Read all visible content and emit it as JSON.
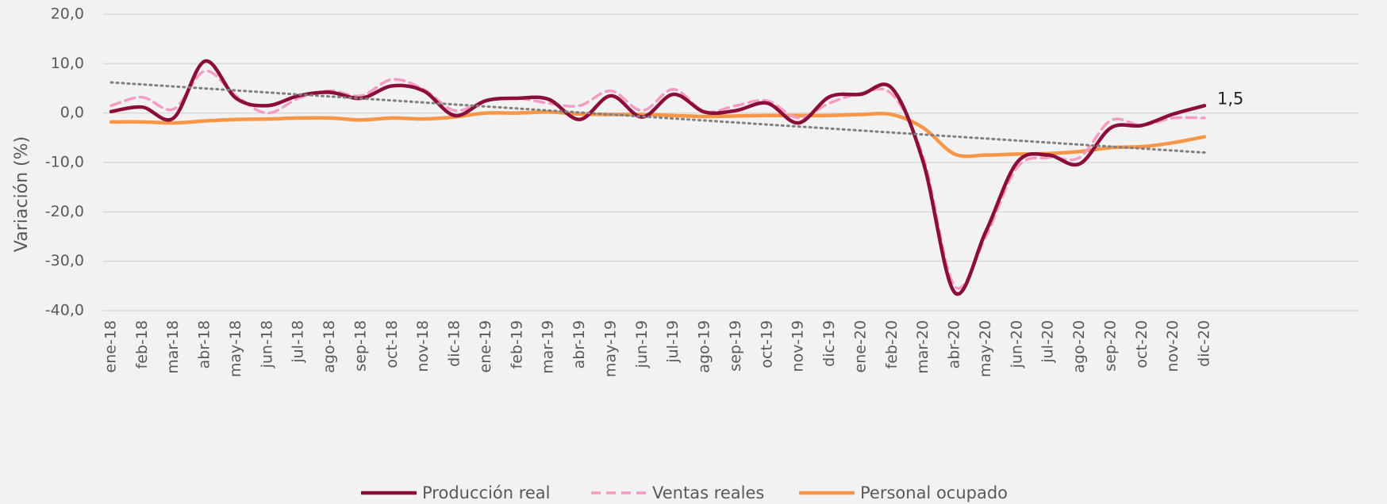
{
  "chart_data": {
    "type": "line",
    "y_label": "Variación (%)",
    "categories": [
      "ene-18",
      "feb-18",
      "mar-18",
      "abr-18",
      "may-18",
      "jun-18",
      "jul-18",
      "ago-18",
      "sep-18",
      "oct-18",
      "nov-18",
      "dic-18",
      "ene-19",
      "feb-19",
      "mar-19",
      "abr-19",
      "may-19",
      "jun-19",
      "jul-19",
      "ago-19",
      "sep-19",
      "oct-19",
      "nov-19",
      "dic-19",
      "ene-20",
      "feb-20",
      "mar-20",
      "abr-20",
      "may-20",
      "jun-20",
      "jul-20",
      "ago-20",
      "sep-20",
      "oct-20",
      "nov-20",
      "dic-20"
    ],
    "series": [
      {
        "name": "Producción real",
        "color": "#8b0e3a",
        "dash": "solid",
        "values": [
          0.3,
          1.2,
          -1.0,
          10.5,
          3.0,
          1.5,
          3.5,
          4.2,
          3.0,
          5.5,
          4.5,
          -0.5,
          2.5,
          3.0,
          2.8,
          -1.3,
          3.5,
          -0.8,
          3.8,
          0.2,
          0.5,
          2.0,
          -2.0,
          3.3,
          3.8,
          5.0,
          -10.0,
          -36.3,
          -24.0,
          -10.0,
          -8.5,
          -10.3,
          -3.0,
          -2.5,
          -0.2,
          1.5
        ],
        "value_labels": [
          null,
          null,
          null,
          null,
          null,
          null,
          null,
          null,
          null,
          null,
          null,
          null,
          null,
          null,
          null,
          null,
          null,
          null,
          null,
          null,
          null,
          null,
          null,
          null,
          null,
          null,
          null,
          null,
          null,
          null,
          null,
          null,
          null,
          null,
          null,
          "1,5"
        ]
      },
      {
        "name": "Ventas reales",
        "color": "#f59bc4",
        "dash": "dashed",
        "values": [
          1.5,
          3.2,
          0.8,
          8.5,
          3.5,
          0.0,
          3.0,
          4.5,
          3.5,
          6.8,
          4.8,
          0.5,
          2.5,
          3.0,
          2.0,
          1.5,
          4.5,
          0.5,
          4.8,
          0.3,
          1.5,
          2.5,
          -1.0,
          2.0,
          4.0,
          3.8,
          -9.0,
          -35.0,
          -25.0,
          -11.0,
          -9.0,
          -9.0,
          -1.5,
          -2.5,
          -1.0,
          -1.0
        ]
      },
      {
        "name": "Personal ocupado",
        "color": "#f79646",
        "dash": "solid",
        "values": [
          -1.8,
          -1.8,
          -2.0,
          -1.6,
          -1.3,
          -1.2,
          -1.0,
          -1.0,
          -1.4,
          -1.0,
          -1.2,
          -0.8,
          0.0,
          0.0,
          0.2,
          -0.2,
          -0.3,
          -0.3,
          -0.5,
          -0.7,
          -0.6,
          -0.5,
          -0.5,
          -0.5,
          -0.3,
          -0.3,
          -3.0,
          -8.3,
          -8.5,
          -8.3,
          -8.2,
          -7.8,
          -7.0,
          -6.8,
          -6.0,
          -4.8
        ]
      }
    ],
    "trendline": {
      "color": "#808080",
      "values": [
        6.2,
        -8.0
      ]
    },
    "ylim": [
      -40,
      20
    ],
    "yticks": [
      {
        "value": -40,
        "label": "-40,0"
      },
      {
        "value": -30,
        "label": "-30,0"
      },
      {
        "value": -20,
        "label": "-20,0"
      },
      {
        "value": -10,
        "label": "-10,0"
      },
      {
        "value": 0,
        "label": "0,0"
      },
      {
        "value": 10,
        "label": "10,0"
      },
      {
        "value": 20,
        "label": "20,0"
      }
    ],
    "grid": true,
    "legend": "bottom"
  }
}
